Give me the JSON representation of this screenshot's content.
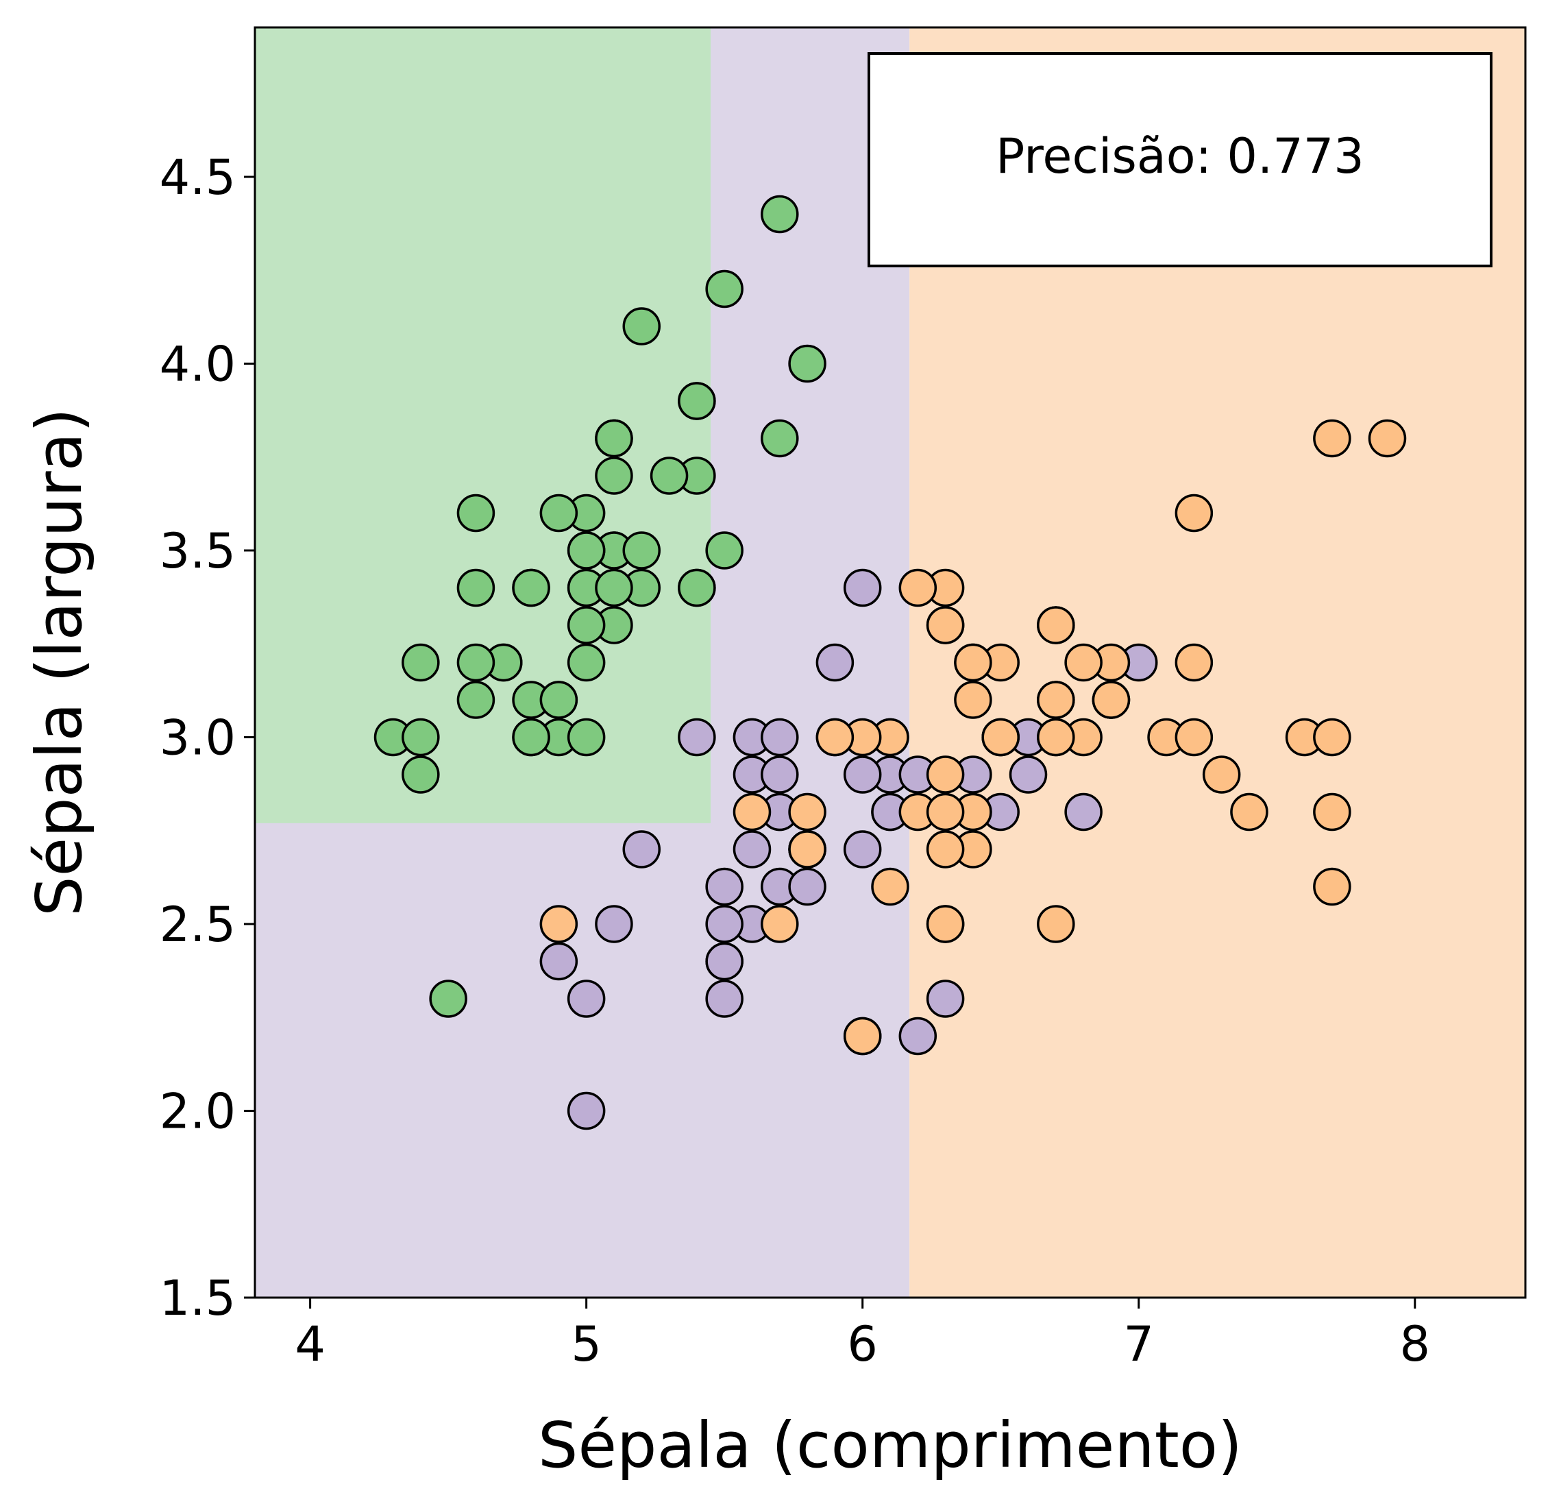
{
  "chart_data": {
    "type": "scatter",
    "title": "",
    "xlabel": "Sépala (comprimento)",
    "ylabel": "Sépala (largura)",
    "xlim": [
      3.8,
      8.4
    ],
    "ylim": [
      1.5,
      4.9
    ],
    "xticks": [
      4,
      5,
      6,
      7,
      8
    ],
    "xtick_labels": [
      "4",
      "5",
      "6",
      "7",
      "8"
    ],
    "yticks": [
      1.5,
      2.0,
      2.5,
      3.0,
      3.5,
      4.0,
      4.5
    ],
    "ytick_labels": [
      "1.5",
      "2.0",
      "2.5",
      "3.0",
      "3.5",
      "4.0",
      "4.5"
    ],
    "grid": false,
    "legend": null,
    "annotation": "Precisão: 0.773",
    "decision_regions": [
      {
        "class": 0,
        "color": "#c1e4c2",
        "x_range": [
          3.8,
          5.45
        ],
        "y_range": [
          2.77,
          4.9
        ]
      },
      {
        "class": 1,
        "color": "#ddd6e8",
        "x_range": [
          3.8,
          6.17
        ],
        "y_range": [
          1.5,
          4.9
        ]
      },
      {
        "class": 2,
        "color": "#fddfc3",
        "x_range": [
          6.17,
          8.4
        ],
        "y_range": [
          1.5,
          4.9
        ]
      }
    ],
    "series": [
      {
        "class": 0,
        "color": "#7fc97f",
        "points": [
          [
            5.1,
            3.5
          ],
          [
            4.9,
            3.0
          ],
          [
            4.7,
            3.2
          ],
          [
            4.6,
            3.1
          ],
          [
            5.0,
            3.6
          ],
          [
            5.4,
            3.9
          ],
          [
            4.6,
            3.4
          ],
          [
            5.0,
            3.4
          ],
          [
            4.4,
            2.9
          ],
          [
            4.9,
            3.1
          ],
          [
            5.4,
            3.7
          ],
          [
            4.8,
            3.4
          ],
          [
            4.8,
            3.0
          ],
          [
            4.3,
            3.0
          ],
          [
            5.8,
            4.0
          ],
          [
            5.7,
            4.4
          ],
          [
            5.4,
            3.9
          ],
          [
            5.1,
            3.5
          ],
          [
            5.7,
            3.8
          ],
          [
            5.1,
            3.8
          ],
          [
            5.4,
            3.4
          ],
          [
            5.1,
            3.7
          ],
          [
            4.6,
            3.6
          ],
          [
            5.1,
            3.3
          ],
          [
            4.8,
            3.4
          ],
          [
            5.0,
            3.0
          ],
          [
            5.0,
            3.4
          ],
          [
            5.2,
            3.5
          ],
          [
            5.2,
            3.4
          ],
          [
            4.7,
            3.2
          ],
          [
            4.8,
            3.1
          ],
          [
            5.4,
            3.4
          ],
          [
            5.2,
            4.1
          ],
          [
            5.5,
            4.2
          ],
          [
            4.9,
            3.1
          ],
          [
            5.0,
            3.2
          ],
          [
            5.5,
            3.5
          ],
          [
            4.9,
            3.6
          ],
          [
            4.4,
            3.0
          ],
          [
            5.1,
            3.4
          ],
          [
            5.0,
            3.5
          ],
          [
            4.5,
            2.3
          ],
          [
            4.4,
            3.2
          ],
          [
            5.0,
            3.5
          ],
          [
            5.1,
            3.8
          ],
          [
            4.8,
            3.0
          ],
          [
            5.1,
            3.8
          ],
          [
            4.6,
            3.2
          ],
          [
            5.3,
            3.7
          ],
          [
            5.0,
            3.3
          ]
        ]
      },
      {
        "class": 1,
        "color": "#beaed4",
        "points": [
          [
            7.0,
            3.2
          ],
          [
            6.4,
            3.2
          ],
          [
            6.9,
            3.1
          ],
          [
            5.5,
            2.3
          ],
          [
            6.5,
            2.8
          ],
          [
            5.7,
            2.8
          ],
          [
            6.3,
            3.3
          ],
          [
            4.9,
            2.4
          ],
          [
            6.6,
            2.9
          ],
          [
            5.2,
            2.7
          ],
          [
            5.0,
            2.0
          ],
          [
            5.9,
            3.0
          ],
          [
            6.0,
            2.2
          ],
          [
            6.1,
            2.9
          ],
          [
            5.6,
            2.9
          ],
          [
            6.7,
            3.1
          ],
          [
            5.6,
            3.0
          ],
          [
            5.8,
            2.7
          ],
          [
            6.2,
            2.2
          ],
          [
            5.6,
            2.5
          ],
          [
            5.9,
            3.2
          ],
          [
            6.1,
            2.8
          ],
          [
            6.3,
            2.5
          ],
          [
            6.1,
            2.8
          ],
          [
            6.4,
            2.9
          ],
          [
            6.6,
            3.0
          ],
          [
            6.8,
            2.8
          ],
          [
            6.7,
            3.0
          ],
          [
            6.0,
            2.9
          ],
          [
            5.7,
            2.6
          ],
          [
            5.5,
            2.4
          ],
          [
            5.5,
            2.4
          ],
          [
            5.8,
            2.7
          ],
          [
            6.0,
            2.7
          ],
          [
            5.4,
            3.0
          ],
          [
            6.0,
            3.4
          ],
          [
            6.7,
            3.1
          ],
          [
            6.3,
            2.3
          ],
          [
            5.6,
            3.0
          ],
          [
            5.5,
            2.5
          ],
          [
            5.5,
            2.6
          ],
          [
            6.1,
            3.0
          ],
          [
            5.8,
            2.6
          ],
          [
            5.0,
            2.3
          ],
          [
            5.6,
            2.7
          ],
          [
            5.7,
            3.0
          ],
          [
            5.7,
            2.9
          ],
          [
            6.2,
            2.9
          ],
          [
            5.1,
            2.5
          ],
          [
            5.7,
            2.8
          ]
        ]
      },
      {
        "class": 2,
        "color": "#fdc086",
        "points": [
          [
            6.3,
            3.3
          ],
          [
            5.8,
            2.7
          ],
          [
            7.1,
            3.0
          ],
          [
            6.3,
            2.9
          ],
          [
            6.5,
            3.0
          ],
          [
            7.6,
            3.0
          ],
          [
            4.9,
            2.5
          ],
          [
            7.3,
            2.9
          ],
          [
            6.7,
            2.5
          ],
          [
            7.2,
            3.6
          ],
          [
            6.5,
            3.2
          ],
          [
            6.4,
            2.7
          ],
          [
            6.8,
            3.0
          ],
          [
            5.7,
            2.5
          ],
          [
            5.8,
            2.8
          ],
          [
            6.4,
            3.2
          ],
          [
            6.5,
            3.0
          ],
          [
            7.7,
            3.8
          ],
          [
            7.7,
            2.6
          ],
          [
            6.0,
            2.2
          ],
          [
            6.9,
            3.2
          ],
          [
            5.6,
            2.8
          ],
          [
            7.7,
            2.8
          ],
          [
            6.3,
            2.7
          ],
          [
            6.7,
            3.3
          ],
          [
            7.2,
            3.2
          ],
          [
            6.2,
            2.8
          ],
          [
            6.1,
            3.0
          ],
          [
            6.4,
            2.8
          ],
          [
            7.2,
            3.0
          ],
          [
            7.4,
            2.8
          ],
          [
            7.9,
            3.8
          ],
          [
            6.4,
            2.8
          ],
          [
            6.3,
            2.8
          ],
          [
            6.1,
            2.6
          ],
          [
            7.7,
            3.0
          ],
          [
            6.3,
            3.4
          ],
          [
            6.4,
            3.1
          ],
          [
            6.0,
            3.0
          ],
          [
            6.9,
            3.1
          ],
          [
            6.7,
            3.1
          ],
          [
            6.9,
            3.1
          ],
          [
            5.8,
            2.7
          ],
          [
            6.8,
            3.2
          ],
          [
            6.7,
            3.3
          ],
          [
            6.7,
            3.0
          ],
          [
            6.3,
            2.5
          ],
          [
            6.5,
            3.0
          ],
          [
            6.2,
            3.4
          ],
          [
            5.9,
            3.0
          ]
        ]
      }
    ]
  }
}
